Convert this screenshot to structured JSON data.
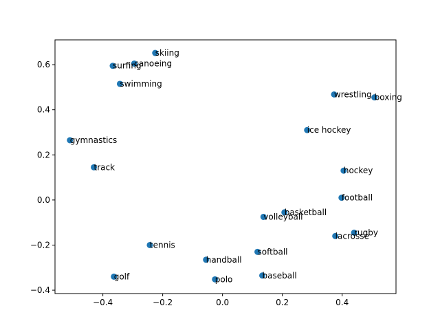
{
  "chart_data": {
    "type": "scatter",
    "title": "",
    "xlabel": "",
    "ylabel": "",
    "xlim": [
      -0.56,
      0.58
    ],
    "ylim": [
      -0.415,
      0.71
    ],
    "xticks": [
      -0.4,
      -0.2,
      0.0,
      0.2,
      0.4
    ],
    "xtick_labels": [
      "−0.4",
      "−0.2",
      "0.0",
      "0.2",
      "0.4"
    ],
    "yticks": [
      -0.4,
      -0.2,
      0.0,
      0.2,
      0.4,
      0.6
    ],
    "ytick_labels": [
      "−0.4",
      "−0.2",
      "0.0",
      "0.2",
      "0.4",
      "0.6"
    ],
    "grid": false,
    "marker_color": "#1f77b4",
    "points": [
      {
        "label": "skiing",
        "x": -0.225,
        "y": 0.652
      },
      {
        "label": "canoeing",
        "x": -0.295,
        "y": 0.605
      },
      {
        "label": "surfing",
        "x": -0.367,
        "y": 0.595
      },
      {
        "label": "swimming",
        "x": -0.343,
        "y": 0.515
      },
      {
        "label": "wrestling",
        "x": 0.373,
        "y": 0.468
      },
      {
        "label": "boxing",
        "x": 0.508,
        "y": 0.455
      },
      {
        "label": "ice hockey",
        "x": 0.283,
        "y": 0.31
      },
      {
        "label": "gymnastics",
        "x": -0.51,
        "y": 0.265
      },
      {
        "label": "track",
        "x": -0.43,
        "y": 0.145
      },
      {
        "label": "hockey",
        "x": 0.405,
        "y": 0.13
      },
      {
        "label": "football",
        "x": 0.398,
        "y": 0.01
      },
      {
        "label": "basketball",
        "x": 0.207,
        "y": -0.055
      },
      {
        "label": "volleyball",
        "x": 0.137,
        "y": -0.075
      },
      {
        "label": "rugby",
        "x": 0.44,
        "y": -0.145
      },
      {
        "label": "lacrosse",
        "x": 0.377,
        "y": -0.16
      },
      {
        "label": "tennis",
        "x": -0.243,
        "y": -0.2
      },
      {
        "label": "softball",
        "x": 0.117,
        "y": -0.23
      },
      {
        "label": "handball",
        "x": -0.055,
        "y": -0.265
      },
      {
        "label": "baseball",
        "x": 0.133,
        "y": -0.335
      },
      {
        "label": "golf",
        "x": -0.363,
        "y": -0.34
      },
      {
        "label": "polo",
        "x": -0.025,
        "y": -0.352
      }
    ]
  }
}
